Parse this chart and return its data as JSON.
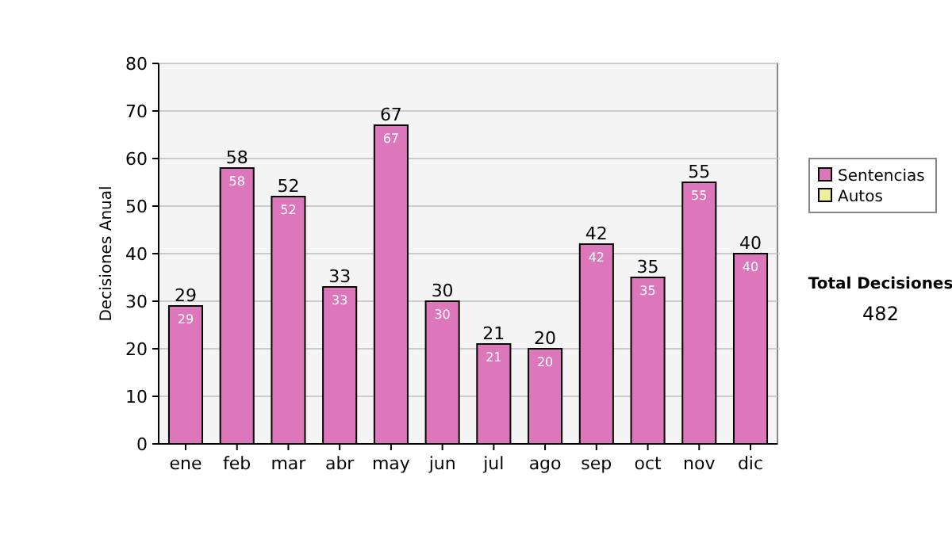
{
  "chart_data": {
    "type": "bar",
    "ylabel": "Decisiones Anual",
    "categories": [
      "ene",
      "feb",
      "mar",
      "abr",
      "may",
      "jun",
      "jul",
      "ago",
      "sep",
      "oct",
      "nov",
      "dic"
    ],
    "series": [
      {
        "name": "Sentencias",
        "color": "#dd77bb",
        "values": [
          29,
          58,
          52,
          33,
          67,
          30,
          21,
          20,
          42,
          35,
          55,
          40
        ]
      },
      {
        "name": "Autos",
        "color": "#eeee99",
        "values": [
          null,
          null,
          null,
          null,
          null,
          null,
          null,
          null,
          null,
          null,
          null,
          null
        ]
      }
    ],
    "ylim": [
      0,
      80
    ],
    "yticks": [
      0,
      10,
      20,
      30,
      40,
      50,
      60,
      70,
      80
    ],
    "grid": "y",
    "legend": "right",
    "data_labels": true,
    "annotations": [
      "Total Decisiones",
      "482",
      {
        "text": "29",
        "x": "ene",
        "y": 29
      },
      {
        "text": "58",
        "x": "feb",
        "y": 58
      },
      {
        "text": "52",
        "x": "mar",
        "y": 52
      },
      {
        "text": "33",
        "x": "abr",
        "y": 33
      },
      {
        "text": "67",
        "x": "may",
        "y": 67
      },
      {
        "text": "30",
        "x": "jun",
        "y": 30
      },
      {
        "text": "21",
        "x": "jul",
        "y": 21
      },
      {
        "text": "20",
        "x": "ago",
        "y": 20
      },
      {
        "text": "42",
        "x": "sep",
        "y": 42
      },
      {
        "text": "35",
        "x": "oct",
        "y": 35
      },
      {
        "text": "55",
        "x": "nov",
        "y": 55
      },
      {
        "text": "40",
        "x": "dic",
        "y": 40
      }
    ]
  }
}
